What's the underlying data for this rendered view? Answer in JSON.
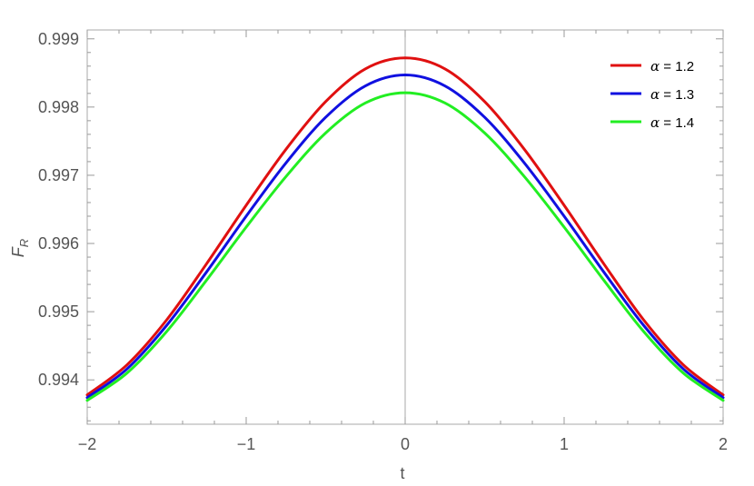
{
  "chart_data": {
    "type": "line",
    "xlabel": "t",
    "ylabel_main": "F",
    "ylabel_sub": "R",
    "xlim": [
      -2.0,
      2.0
    ],
    "ylim": [
      0.99335,
      0.99913
    ],
    "x_ticks": [
      -2,
      -1,
      0,
      1,
      2
    ],
    "x_tick_labels": [
      "−2",
      "−1",
      "0",
      "1",
      "2"
    ],
    "y_ticks": [
      0.994,
      0.995,
      0.996,
      0.997,
      0.998,
      0.999
    ],
    "y_tick_labels": [
      "0.994",
      "0.995",
      "0.996",
      "0.997",
      "0.998",
      "0.999"
    ],
    "grid": false,
    "frame": true,
    "legend_position": "top-right",
    "x": [
      -2.0,
      -1.75,
      -1.5,
      -1.25,
      -1.0,
      -0.75,
      -0.5,
      -0.25,
      0.0,
      0.25,
      0.5,
      0.75,
      1.0,
      1.25,
      1.5,
      1.75,
      2.0
    ],
    "series": [
      {
        "name": "α = 1.2",
        "legend_symbol": "α",
        "legend_value": " = 1.2",
        "color": "#e01010",
        "values": [
          0.99378,
          0.99422,
          0.99488,
          0.9957,
          0.99656,
          0.99738,
          0.99808,
          0.99856,
          0.99872,
          0.99856,
          0.99808,
          0.99738,
          0.99656,
          0.9957,
          0.99488,
          0.99422,
          0.99378
        ]
      },
      {
        "name": "α = 1.3",
        "legend_symbol": "α",
        "legend_value": " = 1.3",
        "color": "#1010e0",
        "values": [
          0.99374,
          0.99416,
          0.9948,
          0.99558,
          0.9964,
          0.99718,
          0.99785,
          0.99831,
          0.99847,
          0.99831,
          0.99785,
          0.99718,
          0.9964,
          0.99558,
          0.9948,
          0.99416,
          0.99374
        ]
      },
      {
        "name": "α = 1.4",
        "legend_symbol": "α",
        "legend_value": " = 1.4",
        "color": "#22ee22",
        "values": [
          0.9937,
          0.9941,
          0.99471,
          0.99546,
          0.99624,
          0.99698,
          0.99762,
          0.99806,
          0.99821,
          0.99806,
          0.99762,
          0.99698,
          0.99624,
          0.99546,
          0.99471,
          0.9941,
          0.9937
        ]
      }
    ]
  }
}
